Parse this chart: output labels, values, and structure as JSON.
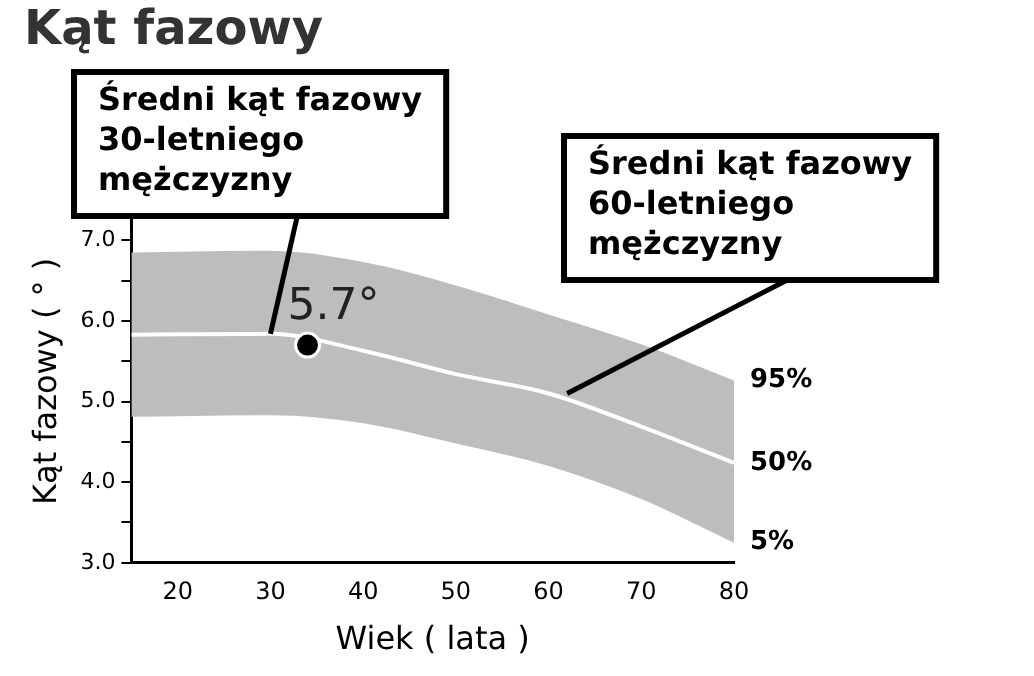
{
  "chart_data": {
    "type": "line",
    "title": "Kąt fazowy",
    "xlabel": "Wiek ( lata )",
    "ylabel": "Kąt fazowy ( ° )",
    "xlim": [
      15,
      80
    ],
    "xticks": [
      20,
      30,
      40,
      50,
      60,
      70,
      80
    ],
    "ylim": [
      3,
      7.5
    ],
    "yticks": [
      {
        "value": 3,
        "label": "3.0"
      },
      {
        "value": 3.5,
        "label": null
      },
      {
        "value": 4,
        "label": "4.0"
      },
      {
        "value": 4.5,
        "label": null
      },
      {
        "value": 5,
        "label": "5.0"
      },
      {
        "value": 5.5,
        "label": null
      },
      {
        "value": 6,
        "label": "6.0"
      },
      {
        "value": 6.5,
        "label": null
      },
      {
        "value": 7,
        "label": "7.0"
      },
      {
        "value": 7.5,
        "label": null
      }
    ],
    "grid": false,
    "legend": false,
    "marker": "none",
    "series": [
      {
        "name": "50%",
        "color": "#ffffff",
        "x": [
          15,
          30,
          40,
          50,
          60,
          70,
          80
        ],
        "values": [
          5.83,
          5.84,
          5.63,
          5.34,
          5.1,
          4.69,
          4.24
        ],
        "upper": [
          6.85,
          6.87,
          6.73,
          6.44,
          6.08,
          5.71,
          5.26
        ],
        "lower": [
          4.81,
          4.83,
          4.73,
          4.48,
          4.2,
          3.79,
          3.25
        ]
      },
      {
        "type": "scatter",
        "marker": "circle",
        "color": "#000000",
        "x": [
          34
        ],
        "values": [
          5.7
        ]
      }
    ],
    "annotations": [
      {
        "text": "95%",
        "x": 80,
        "y": 5.26
      },
      {
        "text": "5%",
        "x": 80,
        "y": 3.25
      },
      {
        "text": "5.7°",
        "x": 34,
        "y": 5.7
      },
      {
        "text": "Średni kąt fazowy\n30-letniego\nmężczyzny",
        "x": 30,
        "y": 5.84
      },
      {
        "text": "Średni kąt fazowy\n60-letniego\nmężczyzny",
        "x": 62,
        "y": 5.1
      }
    ]
  }
}
